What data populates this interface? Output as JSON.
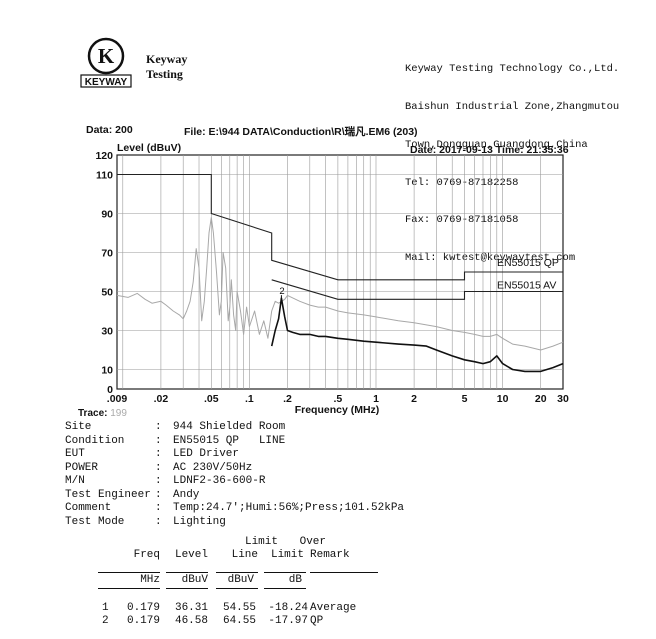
{
  "logo": {
    "letter": "K",
    "word": "KEYWAY"
  },
  "brand": {
    "line1": "Keyway",
    "line2": "Testing"
  },
  "company": {
    "lines": [
      "Keyway Testing Technology Co.,Ltd.",
      "Baishun Industrial Zone,Zhangmutou",
      "Town,Dongguan,Guangdong,China",
      "Tel: 0769-87182258",
      "Fax: 0769-87181058",
      "Mail: kwtest@keywaytest.com"
    ]
  },
  "header": {
    "data": "Data: 200",
    "file": "File: E:\\944 DATA\\Conduction\\R\\瑞凡.EM6  (203)",
    "date": "Date: 2017-09-13  Time: 21:35:36"
  },
  "chart_data": {
    "type": "line",
    "ylabel": "Level (dBuV)",
    "xlabel": "Frequency (MHz)",
    "x_scale": "log",
    "xlim": [
      0.009,
      30
    ],
    "ylim": [
      0,
      120
    ],
    "x_ticks": [
      0.009,
      0.02,
      0.05,
      0.1,
      0.2,
      0.5,
      1,
      2,
      5,
      10,
      20,
      30
    ],
    "x_tick_labels": [
      ".009",
      ".02",
      ".05",
      ".1",
      ".2",
      ".5",
      "1",
      "2",
      "5",
      "10",
      "20",
      "30"
    ],
    "y_ticks": [
      0,
      10,
      30,
      50,
      70,
      90,
      110,
      120
    ],
    "y_tick_labels": [
      "0",
      "10",
      "30",
      "50",
      "70",
      "90",
      "110",
      "120"
    ],
    "grid": true,
    "limit_lines": [
      {
        "name": "EN55015 QP",
        "x": [
          0.009,
          0.05,
          0.05,
          0.15,
          0.15,
          0.5,
          5,
          5,
          30
        ],
        "y": [
          110,
          110,
          90,
          80,
          66,
          56,
          56,
          60,
          60
        ]
      },
      {
        "name": "EN55015 AV",
        "x": [
          0.15,
          0.5,
          5,
          5,
          30
        ],
        "y": [
          56,
          46,
          46,
          50,
          50
        ]
      }
    ],
    "series": [
      {
        "name": "",
        "style": "gray",
        "x": [
          0.009,
          0.011,
          0.013,
          0.015,
          0.017,
          0.02,
          0.022,
          0.025,
          0.028,
          0.03,
          0.032,
          0.034,
          0.036,
          0.038,
          0.04,
          0.042,
          0.044,
          0.046,
          0.048,
          0.05,
          0.052,
          0.055,
          0.058,
          0.06,
          0.062,
          0.065,
          0.068,
          0.07,
          0.072,
          0.075,
          0.078,
          0.08,
          0.085,
          0.09,
          0.095,
          0.1,
          0.11,
          0.12,
          0.13,
          0.14,
          0.15,
          0.16,
          0.17,
          0.18,
          0.19,
          0.2,
          0.25,
          0.3,
          0.35,
          0.4,
          0.5,
          0.6,
          0.8,
          1,
          1.5,
          2,
          3,
          4,
          5,
          6,
          7,
          8,
          9,
          10,
          12,
          15,
          20,
          25,
          30
        ],
        "y": [
          48,
          47,
          49,
          46,
          44,
          45,
          43,
          40,
          38,
          36,
          40,
          45,
          55,
          72,
          62,
          35,
          45,
          62,
          80,
          88,
          80,
          60,
          38,
          45,
          70,
          62,
          35,
          42,
          56,
          38,
          30,
          50,
          40,
          28,
          42,
          32,
          40,
          28,
          35,
          26,
          40,
          45,
          44,
          45,
          46,
          48,
          45,
          43,
          42,
          42,
          40,
          39,
          38,
          37,
          35,
          34,
          32,
          30,
          29,
          28,
          27,
          27,
          28,
          26,
          23,
          22,
          20,
          22,
          24
        ]
      },
      {
        "name": "",
        "style": "black",
        "x": [
          0.15,
          0.16,
          0.17,
          0.179,
          0.19,
          0.2,
          0.22,
          0.25,
          0.3,
          0.35,
          0.4,
          0.5,
          0.6,
          0.7,
          0.8,
          1,
          1.5,
          2,
          2.5,
          3,
          4,
          5,
          6,
          7,
          8,
          9,
          10,
          12,
          15,
          20,
          25,
          30
        ],
        "y": [
          22,
          30,
          36,
          46.58,
          37,
          30,
          29,
          28,
          28,
          27,
          27,
          26,
          25.5,
          25,
          24.5,
          24,
          23,
          22.5,
          22,
          20,
          17,
          15,
          14,
          13,
          14,
          17,
          13,
          10,
          9,
          9,
          11,
          13
        ]
      }
    ],
    "markers": [
      {
        "label": "2",
        "x": 0.179,
        "y": 46.58
      }
    ]
  },
  "trace": {
    "label": "Trace:",
    "num": "199"
  },
  "info": [
    {
      "label": "Site",
      "value": "944 Shielded Room"
    },
    {
      "label": "Condition",
      "value": "EN55015 QP   LINE"
    },
    {
      "label": "EUT",
      "value": "LED Driver"
    },
    {
      "label": "POWER",
      "value": "AC 230V/50Hz"
    },
    {
      "label": "M/N",
      "value": "LDNF2-36-600-R"
    },
    {
      "label": "Test Engineer",
      "value": "Andy"
    },
    {
      "label": "Comment",
      "value": "Temp:24.7';Humi:56%;Press;101.52kPa"
    },
    {
      "label": "Test Mode",
      "value": "Lighting"
    }
  ],
  "table": {
    "head_top": [
      "",
      "",
      "Limit",
      "Over",
      ""
    ],
    "head": [
      "Freq",
      "Level",
      "Line",
      "Limit",
      "Remark"
    ],
    "units": [
      "MHz",
      "dBuV",
      "dBuV",
      "dB",
      ""
    ],
    "rows": [
      {
        "no": "1",
        "freq": "0.179",
        "level": "36.31",
        "line": "54.55",
        "over": "-18.24",
        "remark": "Average"
      },
      {
        "no": "2",
        "freq": "0.179",
        "level": "46.58",
        "line": "64.55",
        "over": "-17.97",
        "remark": "QP"
      }
    ]
  }
}
